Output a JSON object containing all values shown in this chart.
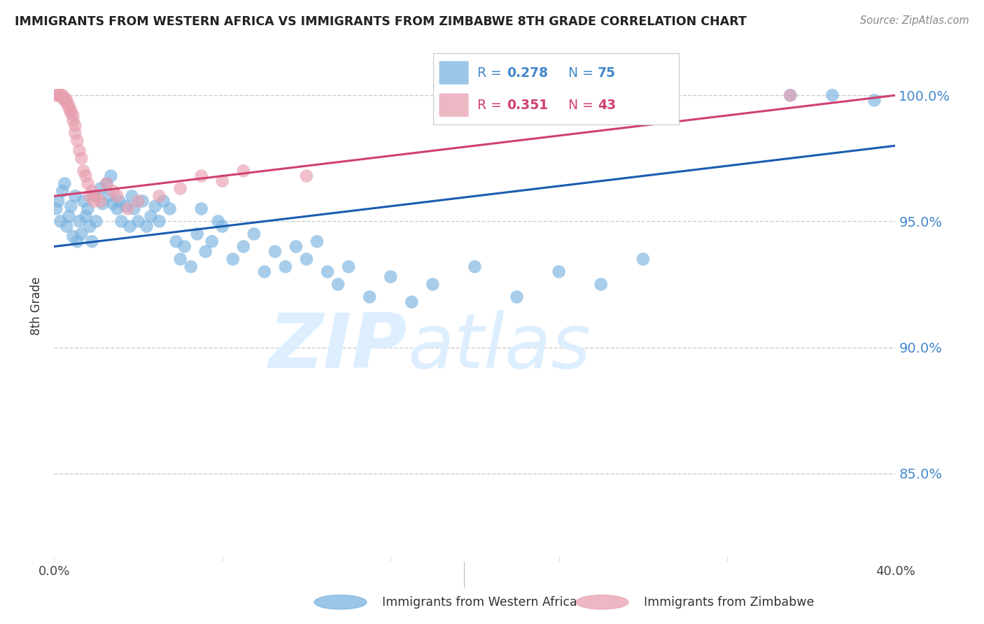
{
  "title": "IMMIGRANTS FROM WESTERN AFRICA VS IMMIGRANTS FROM ZIMBABWE 8TH GRADE CORRELATION CHART",
  "source": "Source: ZipAtlas.com",
  "xlabel_blue": "Immigrants from Western Africa",
  "xlabel_pink": "Immigrants from Zimbabwe",
  "ylabel": "8th Grade",
  "xmin": 0.0,
  "xmax": 0.4,
  "ymin": 0.815,
  "ymax": 1.018,
  "yticks": [
    0.85,
    0.9,
    0.95,
    1.0
  ],
  "ytick_labels": [
    "85.0%",
    "90.0%",
    "95.0%",
    "100.0%"
  ],
  "xtick_positions": [
    0.0,
    0.4
  ],
  "xtick_labels": [
    "0.0%",
    "40.0%"
  ],
  "blue_R": 0.278,
  "blue_N": 75,
  "pink_R": 0.351,
  "pink_N": 43,
  "blue_color": "#7ab3e0",
  "pink_color": "#e8a0b0",
  "blue_line_color": "#1a5cb0",
  "pink_line_color": "#d04070",
  "watermark_zip": "ZIP",
  "watermark_atlas": "atlas",
  "watermark_color": "#ddeeff",
  "blue_line_y0": 0.94,
  "blue_line_y1": 0.98,
  "pink_line_y0": 0.96,
  "pink_line_y1": 1.0,
  "blue_scatter_x": [
    0.001,
    0.002,
    0.003,
    0.004,
    0.005,
    0.006,
    0.007,
    0.008,
    0.009,
    0.01,
    0.011,
    0.012,
    0.013,
    0.014,
    0.015,
    0.016,
    0.017,
    0.018,
    0.019,
    0.02,
    0.022,
    0.023,
    0.025,
    0.026,
    0.027,
    0.028,
    0.03,
    0.031,
    0.032,
    0.034,
    0.036,
    0.037,
    0.038,
    0.04,
    0.042,
    0.044,
    0.046,
    0.048,
    0.05,
    0.052,
    0.055,
    0.058,
    0.06,
    0.062,
    0.065,
    0.068,
    0.07,
    0.072,
    0.075,
    0.078,
    0.08,
    0.085,
    0.09,
    0.095,
    0.1,
    0.105,
    0.11,
    0.115,
    0.12,
    0.125,
    0.13,
    0.135,
    0.14,
    0.15,
    0.16,
    0.17,
    0.18,
    0.2,
    0.22,
    0.24,
    0.26,
    0.28,
    0.35,
    0.37,
    0.39
  ],
  "blue_scatter_y": [
    0.955,
    0.958,
    0.95,
    0.962,
    0.965,
    0.948,
    0.952,
    0.956,
    0.944,
    0.96,
    0.942,
    0.95,
    0.945,
    0.958,
    0.952,
    0.955,
    0.948,
    0.942,
    0.96,
    0.95,
    0.963,
    0.957,
    0.965,
    0.96,
    0.968,
    0.957,
    0.955,
    0.958,
    0.95,
    0.956,
    0.948,
    0.96,
    0.955,
    0.95,
    0.958,
    0.948,
    0.952,
    0.956,
    0.95,
    0.958,
    0.955,
    0.942,
    0.935,
    0.94,
    0.932,
    0.945,
    0.955,
    0.938,
    0.942,
    0.95,
    0.948,
    0.935,
    0.94,
    0.945,
    0.93,
    0.938,
    0.932,
    0.94,
    0.935,
    0.942,
    0.93,
    0.925,
    0.932,
    0.92,
    0.928,
    0.918,
    0.925,
    0.932,
    0.92,
    0.93,
    0.925,
    0.935,
    1.0,
    1.0,
    0.998
  ],
  "pink_scatter_x": [
    0.001,
    0.002,
    0.002,
    0.003,
    0.003,
    0.004,
    0.004,
    0.005,
    0.005,
    0.006,
    0.006,
    0.007,
    0.007,
    0.008,
    0.008,
    0.009,
    0.009,
    0.01,
    0.01,
    0.011,
    0.012,
    0.013,
    0.014,
    0.015,
    0.016,
    0.017,
    0.018,
    0.019,
    0.02,
    0.022,
    0.025,
    0.028,
    0.03,
    0.035,
    0.04,
    0.05,
    0.06,
    0.07,
    0.08,
    0.09,
    0.12,
    0.2,
    0.35
  ],
  "pink_scatter_y": [
    1.0,
    1.0,
    1.0,
    1.0,
    1.0,
    0.999,
    1.0,
    0.999,
    0.998,
    0.998,
    0.997,
    0.996,
    0.995,
    0.994,
    0.993,
    0.992,
    0.99,
    0.988,
    0.985,
    0.982,
    0.978,
    0.975,
    0.97,
    0.968,
    0.965,
    0.96,
    0.962,
    0.958,
    0.96,
    0.958,
    0.965,
    0.962,
    0.96,
    0.955,
    0.958,
    0.96,
    0.963,
    0.968,
    0.966,
    0.97,
    0.968,
    0.999,
    1.0
  ]
}
